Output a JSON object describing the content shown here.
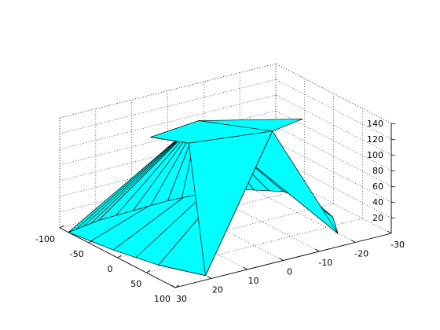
{
  "chart_data": {
    "type": "surface3d",
    "title": "",
    "xlabel": "",
    "ylabel": "",
    "zlabel": "",
    "grid": true,
    "face_color": "#00ffff",
    "edge_color": "#000000",
    "xlim": [
      -30,
      30
    ],
    "ylim": [
      -100,
      100
    ],
    "zlim": [
      0,
      140
    ],
    "x_ticks": [
      30,
      20,
      10,
      0,
      -10,
      -20,
      -30
    ],
    "y_ticks": [
      100,
      50,
      0,
      -50,
      -100
    ],
    "z_ticks": [
      20,
      40,
      60,
      80,
      100,
      120,
      140
    ],
    "x_tick_labels": [
      "30",
      "20",
      "10",
      "0",
      "-10",
      "-20",
      "-30"
    ],
    "y_tick_labels": [
      "100",
      "50",
      "0",
      "-50",
      "-100"
    ],
    "z_tick_labels": [
      "20",
      "40",
      "60",
      "80",
      "100",
      "120",
      "140"
    ],
    "surface": {
      "apexes": [
        {
          "x": -5,
          "y": 50,
          "z": 140
        },
        {
          "x": 5,
          "y": -15,
          "z": 140
        }
      ],
      "top_plateau": [
        {
          "x": 15,
          "y": 30,
          "z": 140
        },
        {
          "x": -5,
          "y": 50,
          "z": 140
        },
        {
          "x": -15,
          "y": 40,
          "z": 140
        },
        {
          "x": 5,
          "y": -15,
          "z": 140
        },
        {
          "x": 20,
          "y": -5,
          "z": 140
        }
      ],
      "base_outline": [
        {
          "x": 20,
          "y": 90,
          "z": 0
        },
        {
          "x": 25,
          "y": 40,
          "z": 0
        },
        {
          "x": 28,
          "y": -20,
          "z": 0
        },
        {
          "x": 30,
          "y": -85,
          "z": 0
        },
        {
          "x": 20,
          "y": -95,
          "z": 0
        },
        {
          "x": 0,
          "y": -100,
          "z": 0
        },
        {
          "x": -15,
          "y": -95,
          "z": 0
        },
        {
          "x": -25,
          "y": -55,
          "z": 0
        },
        {
          "x": -27,
          "y": -10,
          "z": 0
        },
        {
          "x": -25,
          "y": 30,
          "z": 0
        },
        {
          "x": -20,
          "y": 70,
          "z": 0
        }
      ],
      "left_flap": [
        {
          "x": 25,
          "y": 95,
          "z": 20
        },
        {
          "x": 20,
          "y": 90,
          "z": 0
        },
        {
          "x": 25,
          "y": 40,
          "z": 0
        }
      ]
    }
  }
}
